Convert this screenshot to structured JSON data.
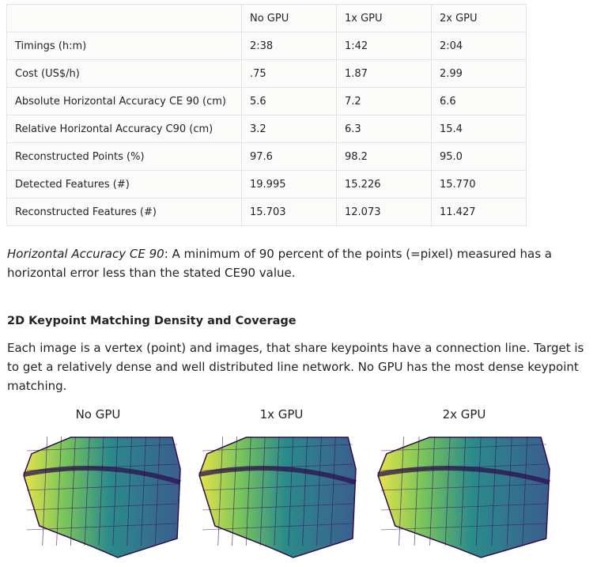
{
  "table": {
    "columns": [
      "No GPU",
      "1x GPU",
      "2x GPU"
    ],
    "rows": [
      [
        "Timings (h:m)",
        "2:38",
        "1:42",
        "2:04"
      ],
      [
        "Cost (US$/h)",
        ".75",
        "1.87",
        "2.99"
      ],
      [
        "Absolute Horizontal Accuracy CE 90 (cm)",
        "5.6",
        "7.2",
        "6.6"
      ],
      [
        "Relative Horizontal Accuracy C90 (cm)",
        "3.2",
        "6.3",
        "15.4"
      ],
      [
        "Reconstructed Points (%)",
        "97.6",
        "98.2",
        "95.0"
      ],
      [
        "Detected Features (#)",
        "19.995",
        "15.226",
        "15.770"
      ],
      [
        "Reconstructed Features (#)",
        "15.703",
        "12.073",
        "11.427"
      ]
    ]
  },
  "note": {
    "term": "Horizontal Accuracy CE 90",
    "text": ": A minimum of 90 percent of the points (=pixel) measured has a horizontal error less than the stated CE90 value."
  },
  "section": {
    "heading": "2D Keypoint Matching Density and Coverage",
    "paragraph": "Each image is a vertex (point) and images, that share keypoints have a connection line. Target is to get a relatively dense and well distributed line network. No GPU has the most dense keypoint matching."
  },
  "figures": [
    {
      "caption": "No GPU"
    },
    {
      "caption": "1x GPU"
    },
    {
      "caption": "2x GPU"
    }
  ]
}
